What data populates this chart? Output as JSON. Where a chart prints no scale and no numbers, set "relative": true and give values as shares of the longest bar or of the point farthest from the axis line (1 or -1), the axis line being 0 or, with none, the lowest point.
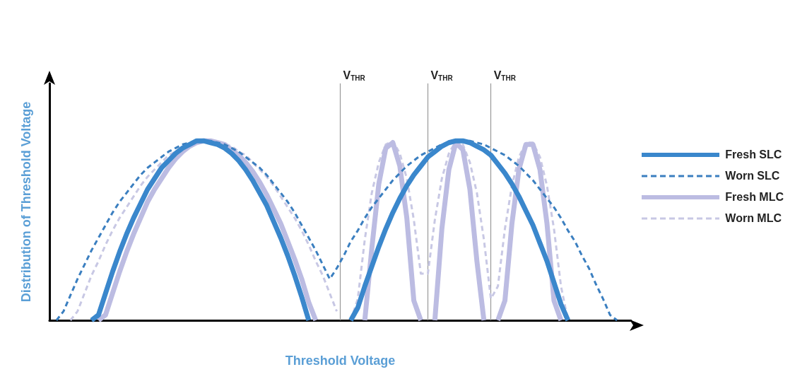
{
  "chart_data": {
    "type": "line",
    "relative": true,
    "xlabel": "Threshold Voltage",
    "ylabel": "Distribution of Threshold Voltage",
    "legend": "right",
    "annotations": [
      "V$_{THR}$",
      "V$_{THR}$",
      "V$_{THR}$"
    ],
    "categories": [
      null,
      null,
      null,
      null,
      null,
      null,
      null,
      null,
      null,
      null,
      null,
      null,
      null,
      null,
      null,
      null,
      null,
      null,
      null,
      null,
      null,
      null,
      null,
      null,
      null,
      null,
      null,
      null,
      null,
      null,
      null,
      null,
      null,
      null,
      null,
      null,
      null,
      null,
      null,
      null,
      null,
      null,
      null,
      null,
      null,
      null,
      null,
      null,
      null,
      null,
      null,
      null,
      null,
      null,
      null,
      null,
      null,
      null,
      null,
      null,
      null,
      null,
      null,
      null,
      null,
      null,
      null,
      null,
      null,
      null,
      null,
      null,
      null,
      null,
      null,
      null,
      null,
      null,
      null,
      null,
      null,
      null,
      null,
      null
    ],
    "series": [
      {
        "name": "Fresh SLC",
        "color": "#3a87cc",
        "line_style": "solid",
        "values": [
          null,
          null,
          null,
          null,
          null,
          null,
          0,
          0.03,
          0.15,
          0.27,
          0.38,
          0.48,
          0.57,
          0.65,
          0.73,
          0.79,
          0.85,
          0.89,
          0.93,
          0.96,
          0.98,
          1,
          1,
          0.99,
          0.98,
          0.96,
          0.93,
          0.89,
          0.84,
          0.78,
          0.71,
          0.64,
          0.55,
          0.46,
          0.36,
          0.25,
          0.13,
          0,
          null,
          null,
          null,
          null,
          null,
          0,
          0.07,
          0.19,
          0.3,
          0.41,
          0.51,
          0.6,
          0.68,
          0.75,
          0.81,
          0.86,
          0.91,
          0.94,
          0.97,
          0.99,
          1,
          1,
          0.99,
          0.97,
          0.95,
          0.92,
          0.87,
          0.82,
          0.76,
          0.69,
          0.61,
          0.53,
          0.43,
          0.33,
          0.21,
          0.09,
          0,
          null,
          null,
          null,
          null,
          null,
          null,
          null,
          null,
          null
        ]
      },
      {
        "name": "Worn SLC",
        "color": "#3b7fc0",
        "line_style": "dashed",
        "values": [
          null,
          0,
          0.05,
          0.14,
          0.23,
          0.31,
          0.39,
          0.46,
          0.53,
          0.6,
          0.66,
          0.71,
          0.76,
          0.81,
          0.85,
          0.88,
          0.91,
          0.94,
          0.96,
          0.98,
          0.99,
          1,
          1,
          1,
          0.99,
          0.98,
          0.96,
          0.94,
          0.91,
          0.88,
          0.85,
          0.81,
          0.76,
          0.71,
          0.66,
          0.6,
          0.53,
          0.46,
          0.39,
          0.31,
          0.23,
          0.29,
          0.36,
          0.44,
          0.5,
          0.57,
          0.63,
          0.68,
          0.73,
          0.78,
          0.82,
          0.86,
          0.89,
          0.92,
          0.94,
          0.96,
          0.98,
          0.99,
          1,
          1,
          1,
          0.99,
          0.98,
          0.96,
          0.94,
          0.92,
          0.89,
          0.86,
          0.82,
          0.78,
          0.73,
          0.68,
          0.63,
          0.57,
          0.5,
          0.44,
          0.36,
          0.29,
          0.2,
          0.12,
          0.03,
          0,
          null,
          null
        ]
      },
      {
        "name": "Fresh MLC",
        "color": "#bcbce2",
        "line_style": "solid",
        "values": [
          null,
          null,
          null,
          null,
          null,
          null,
          null,
          0,
          0.03,
          0.15,
          0.27,
          0.38,
          0.48,
          0.57,
          0.66,
          0.73,
          0.79,
          0.85,
          0.9,
          0.94,
          0.97,
          0.99,
          1,
          1,
          0.99,
          0.98,
          0.95,
          0.92,
          0.88,
          0.83,
          0.77,
          0.7,
          0.62,
          0.54,
          0.44,
          0.34,
          0.23,
          0.1,
          0,
          null,
          null,
          null,
          null,
          null,
          null,
          0,
          0.4,
          0.76,
          0.96,
          0.99,
          0.86,
          0.57,
          0.11,
          0,
          null,
          0,
          0.51,
          0.84,
          0.99,
          0.95,
          0.73,
          0.33,
          0,
          null,
          0,
          0.11,
          0.54,
          0.84,
          0.98,
          0.98,
          0.84,
          0.54,
          0.11,
          0,
          null,
          null,
          null,
          null,
          null,
          null,
          null,
          null,
          null,
          null
        ]
      },
      {
        "name": "Worn MLC",
        "color": "#c8c8e4",
        "line_style": "dashed",
        "values": [
          null,
          null,
          null,
          0,
          0.05,
          0.15,
          0.25,
          0.33,
          0.42,
          0.5,
          0.57,
          0.63,
          0.69,
          0.75,
          0.8,
          0.84,
          0.88,
          0.92,
          0.94,
          0.97,
          0.98,
          0.99,
          1,
          1,
          0.99,
          0.98,
          0.97,
          0.94,
          0.92,
          0.88,
          0.84,
          0.8,
          0.75,
          0.69,
          0.63,
          0.57,
          0.5,
          0.42,
          0.33,
          0.25,
          0.15,
          0.05,
          null,
          0,
          0.12,
          0.45,
          0.71,
          0.88,
          0.98,
          1,
          0.93,
          0.79,
          0.56,
          0.26,
          0.26,
          0.56,
          0.79,
          0.93,
          1,
          0.98,
          0.88,
          0.71,
          0.45,
          0.12,
          0.19,
          0.51,
          0.75,
          0.91,
          0.99,
          0.99,
          0.91,
          0.75,
          0.51,
          0.19,
          0,
          null,
          null,
          null,
          null,
          null,
          null,
          null,
          null,
          null
        ]
      }
    ]
  }
}
